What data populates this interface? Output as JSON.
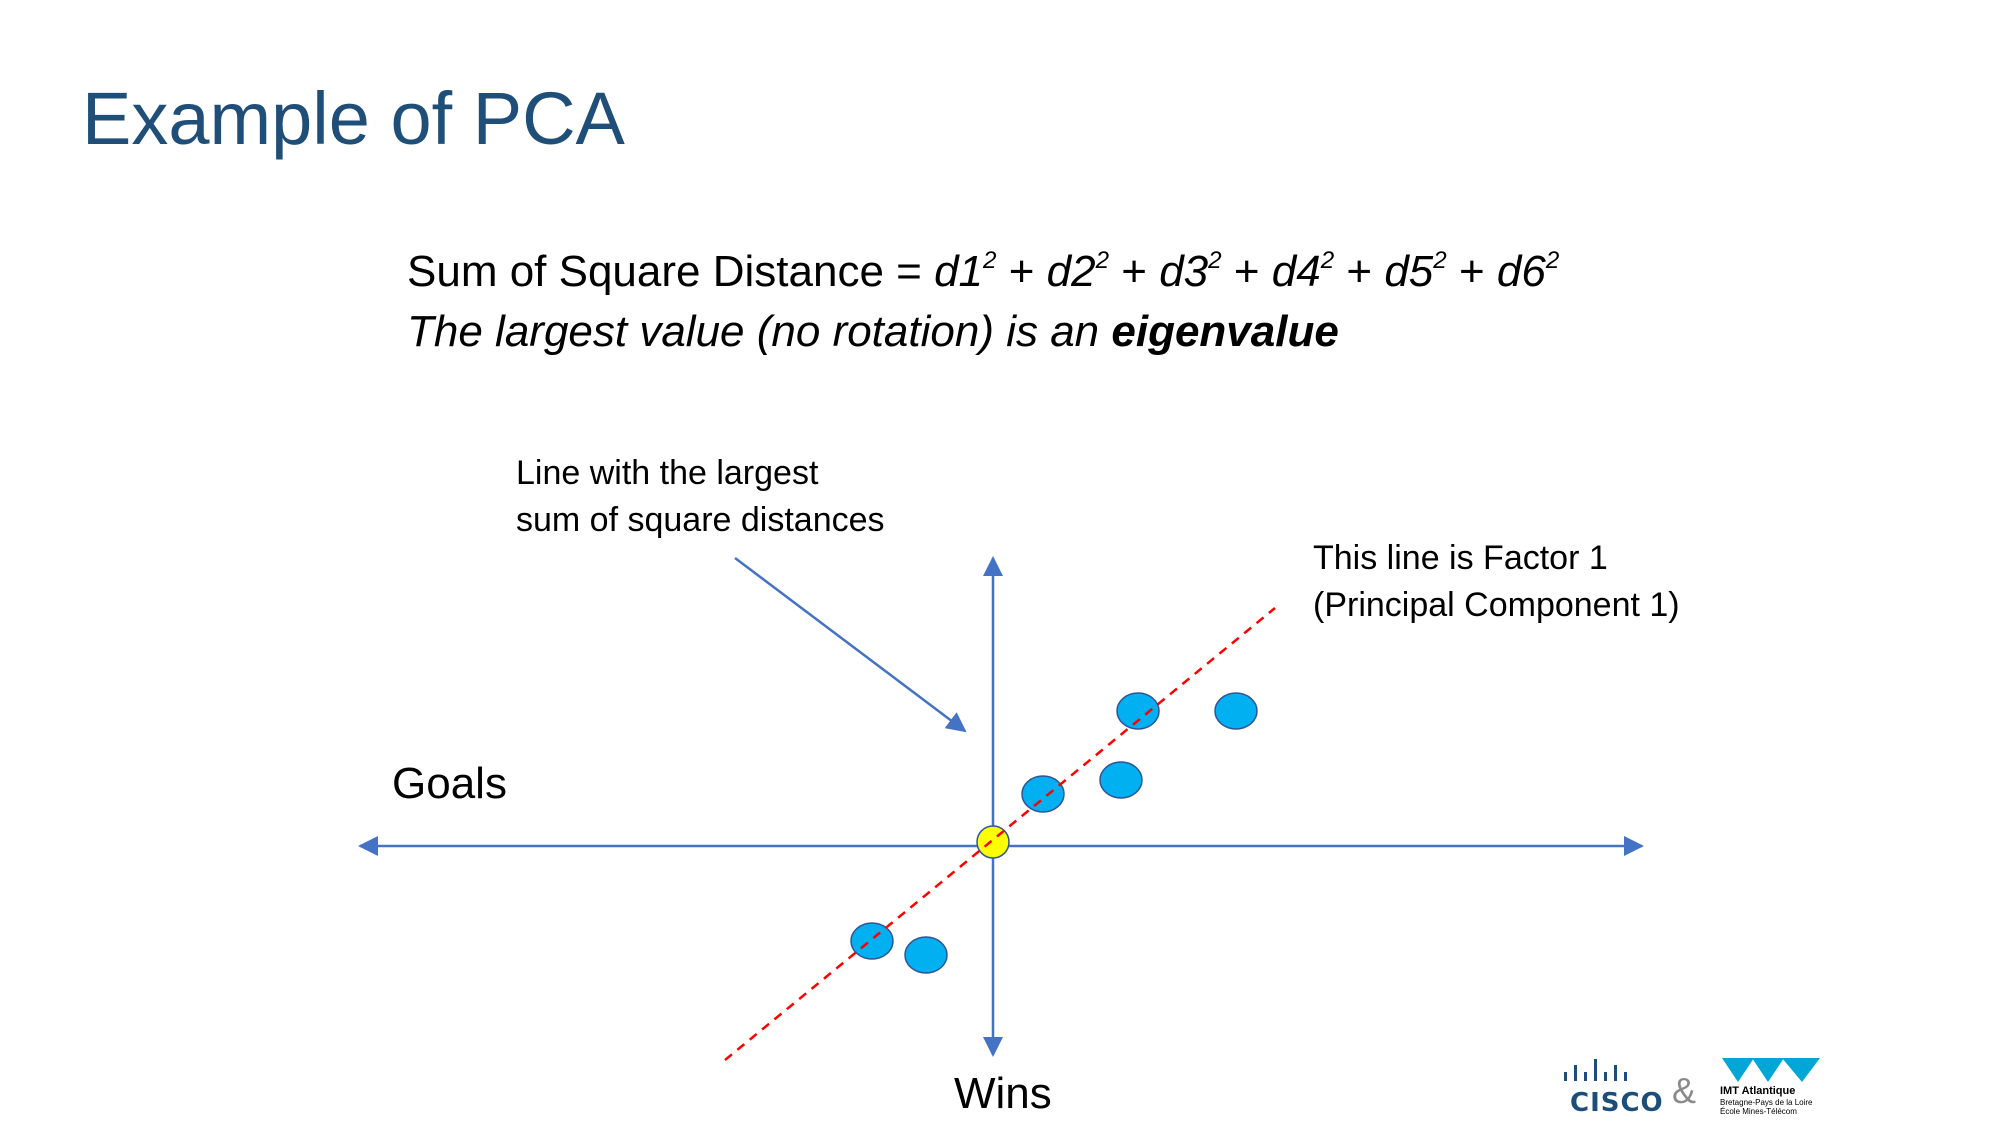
{
  "slide": {
    "title": "Example of PCA"
  },
  "formula": {
    "lhs": "Sum of Square Distance = ",
    "terms": [
      {
        "base": "d1",
        "exp": "2"
      },
      {
        "base": "d2",
        "exp": "2"
      },
      {
        "base": "d3",
        "exp": "2"
      },
      {
        "base": "d4",
        "exp": "2"
      },
      {
        "base": "d5",
        "exp": "2"
      },
      {
        "base": "d6",
        "exp": "2"
      }
    ],
    "plus": " + ",
    "line2_prefix": "The largest value (no rotation) is an ",
    "line2_bold": "eigenvalue"
  },
  "annotations": {
    "left_line1": "Line with the largest",
    "left_line2": "sum of square distances",
    "right_line1": "This line is Factor 1",
    "right_line2": "(Principal Component 1)"
  },
  "axes": {
    "horizontal_label": "Goals",
    "vertical_label": "Wins"
  },
  "colors": {
    "title": "#1f4e79",
    "axis": "#4472c4",
    "point_fill": "#00b0f0",
    "point_stroke": "#2f5597",
    "origin_fill": "#ffff00",
    "factor_line": "#ff0000"
  },
  "footer": {
    "cisco": "CISCO",
    "ampersand": "&",
    "imt_name": "IMT Atlantique",
    "imt_sub1": "Bretagne-Pays de la Loire",
    "imt_sub2": "École Mines-Télécom"
  }
}
